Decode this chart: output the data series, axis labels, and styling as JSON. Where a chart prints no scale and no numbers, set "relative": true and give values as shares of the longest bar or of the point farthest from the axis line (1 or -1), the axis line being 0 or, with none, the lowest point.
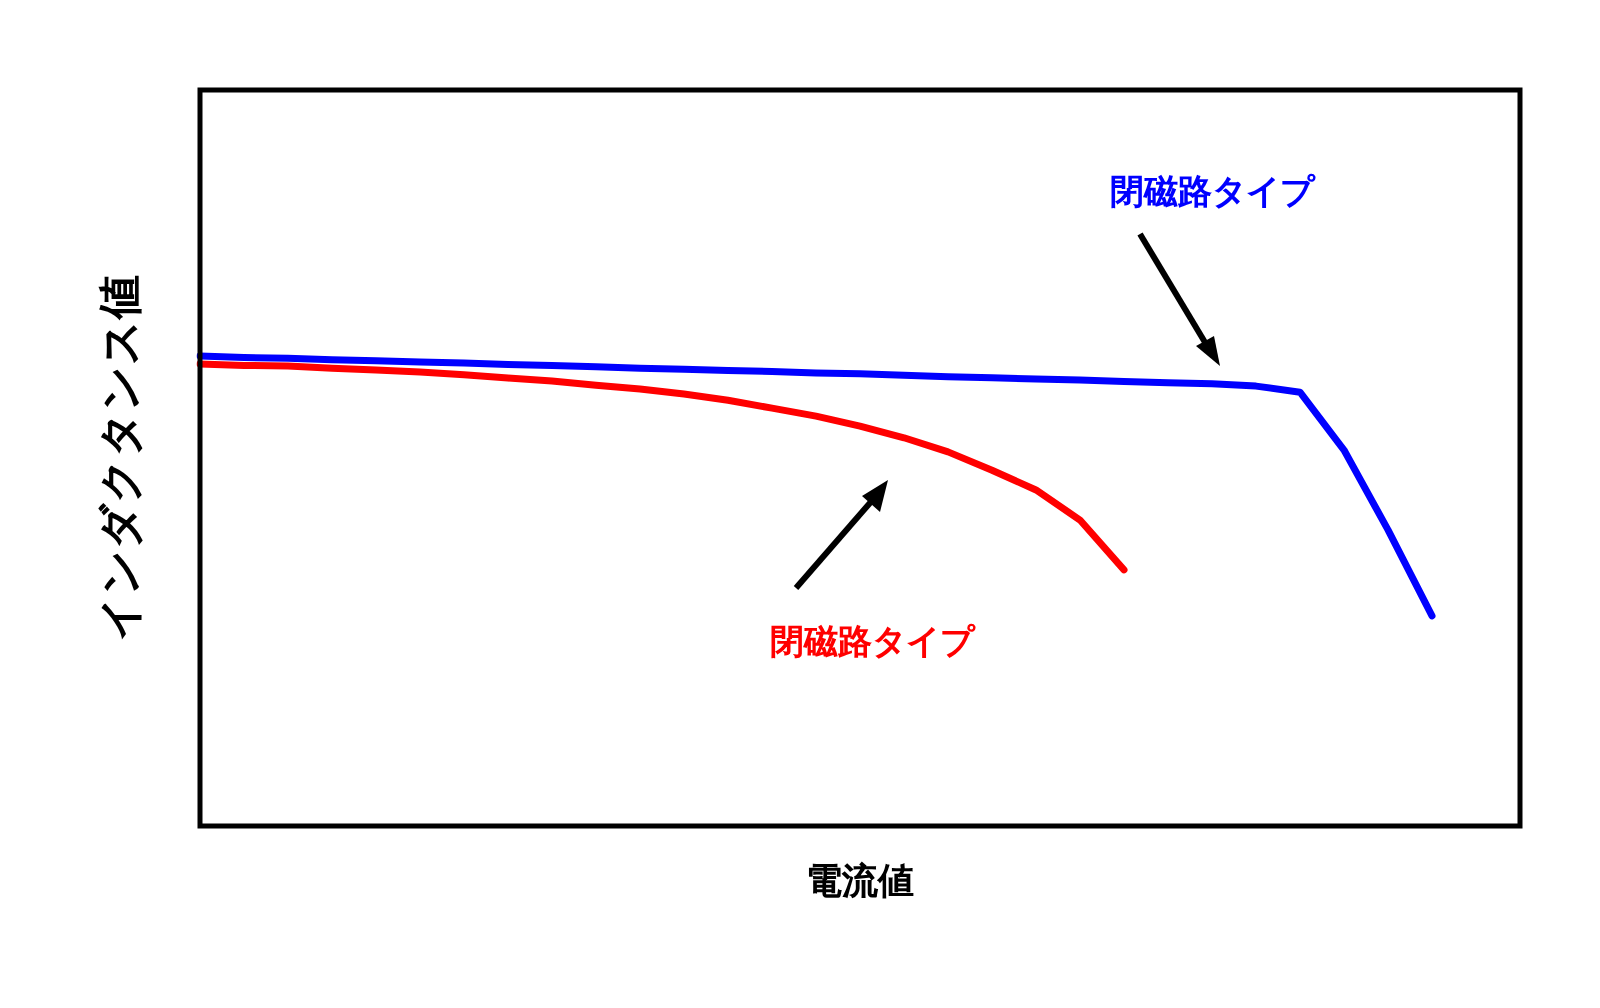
{
  "chart_data": {
    "type": "line",
    "relative": true,
    "xlabel": "電流値",
    "ylabel": "インダクタンス値",
    "legend": false,
    "marker": "none",
    "line_style": "solid",
    "categories": [
      null,
      null,
      null,
      null,
      null,
      null,
      null,
      null,
      null,
      null,
      null,
      null,
      null,
      null,
      null,
      null,
      null,
      null,
      null,
      null,
      null,
      null,
      null,
      null,
      null,
      null,
      null,
      null,
      null,
      null,
      null
    ],
    "series": [
      {
        "name": "閉磁路タイプ",
        "color": "#0000ff",
        "values": [
          1.0,
          0.997,
          0.995,
          0.992,
          0.99,
          0.987,
          0.985,
          0.982,
          0.98,
          0.977,
          0.974,
          0.972,
          0.969,
          0.967,
          0.964,
          0.962,
          0.959,
          0.956,
          0.954,
          0.951,
          0.949,
          0.946,
          0.943,
          0.941,
          0.936,
          0.923,
          0.8,
          0.63,
          0.447,
          null,
          null
        ]
      },
      {
        "name": "閉磁路タイプ",
        "color": "#ff0000",
        "values": [
          0.983,
          0.98,
          0.979,
          0.974,
          0.97,
          0.966,
          0.96,
          0.953,
          0.947,
          0.938,
          0.93,
          0.919,
          0.906,
          0.889,
          0.872,
          0.851,
          0.826,
          0.796,
          0.757,
          0.715,
          0.651,
          0.545,
          null,
          null,
          null,
          null,
          null,
          null,
          null,
          null,
          null
        ]
      }
    ]
  }
}
